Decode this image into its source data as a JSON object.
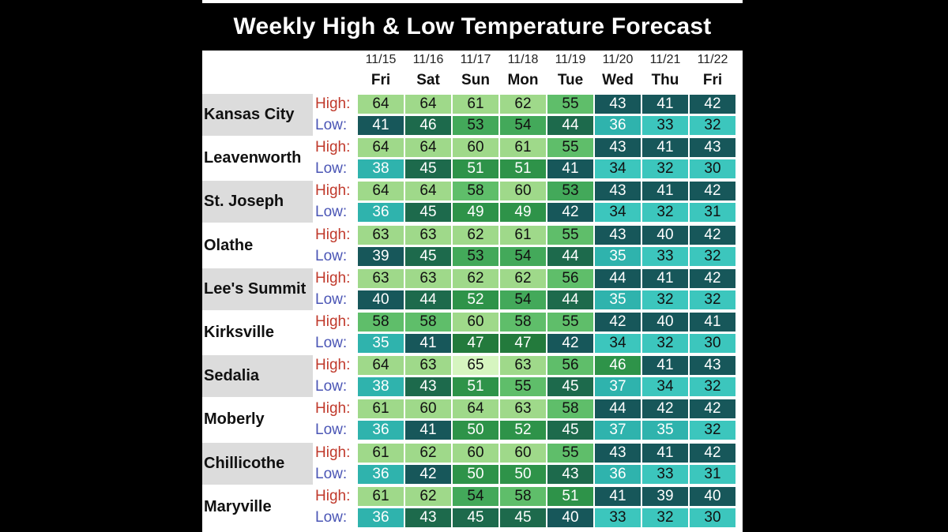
{
  "colors": {
    "background": "#000000",
    "title_bar": "#000000",
    "high_label": "#c0392b",
    "low_label": "#4a55b5",
    "city_shade": "#dcdcdc"
  },
  "labels": {
    "high": "High:",
    "low": "Low:"
  },
  "chart_data": {
    "type": "table",
    "title": "Weekly High & Low Temperature Forecast",
    "columns": [
      {
        "date": "11/15",
        "day": "Fri"
      },
      {
        "date": "11/16",
        "day": "Sat"
      },
      {
        "date": "11/17",
        "day": "Sun"
      },
      {
        "date": "11/18",
        "day": "Mon"
      },
      {
        "date": "11/19",
        "day": "Tue"
      },
      {
        "date": "11/20",
        "day": "Wed"
      },
      {
        "date": "11/21",
        "day": "Thu"
      },
      {
        "date": "11/22",
        "day": "Fri"
      }
    ],
    "rows": [
      {
        "city": "Kansas City",
        "high": [
          64,
          64,
          61,
          62,
          55,
          43,
          41,
          42
        ],
        "low": [
          41,
          46,
          53,
          54,
          44,
          36,
          33,
          32
        ]
      },
      {
        "city": "Leavenworth",
        "high": [
          64,
          64,
          60,
          61,
          55,
          43,
          41,
          43
        ],
        "low": [
          38,
          45,
          51,
          51,
          41,
          34,
          32,
          30
        ]
      },
      {
        "city": "St. Joseph",
        "high": [
          64,
          64,
          58,
          60,
          53,
          43,
          41,
          42
        ],
        "low": [
          36,
          45,
          49,
          49,
          42,
          34,
          32,
          31
        ]
      },
      {
        "city": "Olathe",
        "high": [
          63,
          63,
          62,
          61,
          55,
          43,
          40,
          42
        ],
        "low": [
          39,
          45,
          53,
          54,
          44,
          35,
          33,
          32
        ]
      },
      {
        "city": "Lee's Summit",
        "high": [
          63,
          63,
          62,
          62,
          56,
          44,
          41,
          42
        ],
        "low": [
          40,
          44,
          52,
          54,
          44,
          35,
          32,
          32
        ]
      },
      {
        "city": "Kirksville",
        "high": [
          58,
          58,
          60,
          58,
          55,
          42,
          40,
          41
        ],
        "low": [
          35,
          41,
          47,
          47,
          42,
          34,
          32,
          30
        ]
      },
      {
        "city": "Sedalia",
        "high": [
          64,
          63,
          65,
          63,
          56,
          46,
          41,
          43
        ],
        "low": [
          38,
          43,
          51,
          55,
          45,
          37,
          34,
          32
        ]
      },
      {
        "city": "Moberly",
        "high": [
          61,
          60,
          64,
          63,
          58,
          44,
          42,
          42
        ],
        "low": [
          36,
          41,
          50,
          52,
          45,
          37,
          35,
          32
        ]
      },
      {
        "city": "Chillicothe",
        "high": [
          61,
          62,
          60,
          60,
          55,
          43,
          41,
          42
        ],
        "low": [
          36,
          42,
          50,
          50,
          43,
          36,
          33,
          31
        ]
      },
      {
        "city": "Maryville",
        "high": [
          61,
          62,
          54,
          58,
          51,
          41,
          39,
          40
        ],
        "low": [
          36,
          43,
          45,
          45,
          40,
          33,
          32,
          30
        ]
      }
    ]
  }
}
